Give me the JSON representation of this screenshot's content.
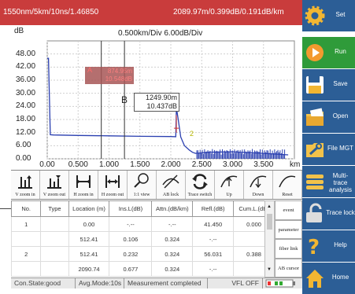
{
  "header": {
    "params": "1550nm/5km/10ns/1.46850",
    "readout": "2089.97m/0.399dB/0.191dB/km"
  },
  "plot": {
    "y_unit": "dB",
    "scale": "0.500km/Div  6.00dB/Div",
    "y_ticks": [
      "48.00",
      "42.00",
      "36.00",
      "30.00",
      "24.00",
      "18.00",
      "12.00",
      "6.00",
      "0.00"
    ],
    "x_ticks": [
      "0.00",
      "0.500",
      "1.000",
      "1.500",
      "2.000",
      "2.500",
      "3.000",
      "3.500"
    ],
    "x_unit": "km",
    "cursor_a": {
      "label": "A",
      "distance": "874.95m",
      "loss": "10.548dB"
    },
    "cursor_b": {
      "label": "B",
      "distance": "1249.90m",
      "loss": "10.437dB"
    },
    "event_marker": "2"
  },
  "chart_data": {
    "type": "line",
    "title": "",
    "xlabel": "km",
    "ylabel": "dB",
    "xlim": [
      0,
      4.0
    ],
    "ylim": [
      0,
      54
    ],
    "grid": true,
    "series": [
      {
        "x": [
          0.0,
          0.02,
          0.05,
          0.1,
          0.5,
          1.0,
          1.5,
          2.0,
          2.08,
          2.09,
          2.12,
          2.16,
          2.22,
          2.3,
          2.35,
          2.4,
          2.6,
          3.0,
          3.5,
          3.9
        ],
        "y": [
          46.0,
          46.0,
          11.0,
          10.9,
          10.7,
          10.5,
          10.3,
          10.2,
          10.1,
          23.5,
          18.0,
          10.0,
          6.0,
          4.0,
          3.0,
          2.5,
          3.0,
          3.2,
          2.5,
          1.8
        ]
      }
    ]
  },
  "toolbar": [
    {
      "icon": "v-zoom-in-icon",
      "label": "V zoom in"
    },
    {
      "icon": "v-zoom-out-icon",
      "label": "V zoom out"
    },
    {
      "icon": "h-zoom-in-icon",
      "label": "H zoom in"
    },
    {
      "icon": "h-zoom-out-icon",
      "label": "H zoom out"
    },
    {
      "icon": "magnifier-icon",
      "label": "1:1 view"
    },
    {
      "icon": "ab-lock-icon",
      "label": "AB lock"
    },
    {
      "icon": "trace-switch-icon",
      "label": "Trace switch"
    },
    {
      "icon": "up-icon",
      "label": "Up"
    },
    {
      "icon": "down-icon",
      "label": "Down"
    },
    {
      "icon": "reset-icon",
      "label": "Reset"
    }
  ],
  "table": {
    "headers": [
      "No.",
      "Type",
      "Location (m)",
      "Ins.L(dB)",
      "Attn.(dB/km)",
      "Refl.(dB)",
      "Cum.L.(dB)"
    ],
    "rows": [
      [
        "1",
        "",
        "0.00",
        "-.--",
        "-.--",
        "41.450",
        "0.000"
      ],
      [
        "",
        "",
        "512.41",
        "0.106",
        "0.324",
        "-.--",
        ""
      ],
      [
        "2",
        "",
        "512.41",
        "0.232",
        "0.324",
        "56.031",
        "0.388"
      ],
      [
        "",
        "",
        "2090.74",
        "0.677",
        "0.324",
        "-.--",
        ""
      ]
    ]
  },
  "side_tabs": [
    "event",
    "parameter",
    "fiber link",
    "AB cursor"
  ],
  "status": {
    "connection": "Con.State:good",
    "avg_mode": "Avg.Mode:10s",
    "measurement": "Measurement completed",
    "vfl": "VFL OFF"
  },
  "menu": [
    {
      "label": "Set",
      "icon": "gear-icon"
    },
    {
      "label": "Run",
      "icon": "play-icon"
    },
    {
      "label": "Save",
      "icon": "floppy-icon"
    },
    {
      "label": "Open",
      "icon": "folder-icon"
    },
    {
      "label": "File MGT",
      "icon": "wrench-icon"
    },
    {
      "label": "Multi-trace analysis",
      "icon": "layers-icon"
    },
    {
      "label": "Trace lock",
      "icon": "lock-icon"
    },
    {
      "label": "Help",
      "icon": "question-icon"
    },
    {
      "label": "Home",
      "icon": "home-icon"
    }
  ],
  "colors": {
    "header_bg": "#c93c3c",
    "menu_bg": "#2c5e96",
    "run_bg": "#2f9b3a",
    "trace": "#2a3fb0",
    "cursor_a_box": "#a75656"
  }
}
